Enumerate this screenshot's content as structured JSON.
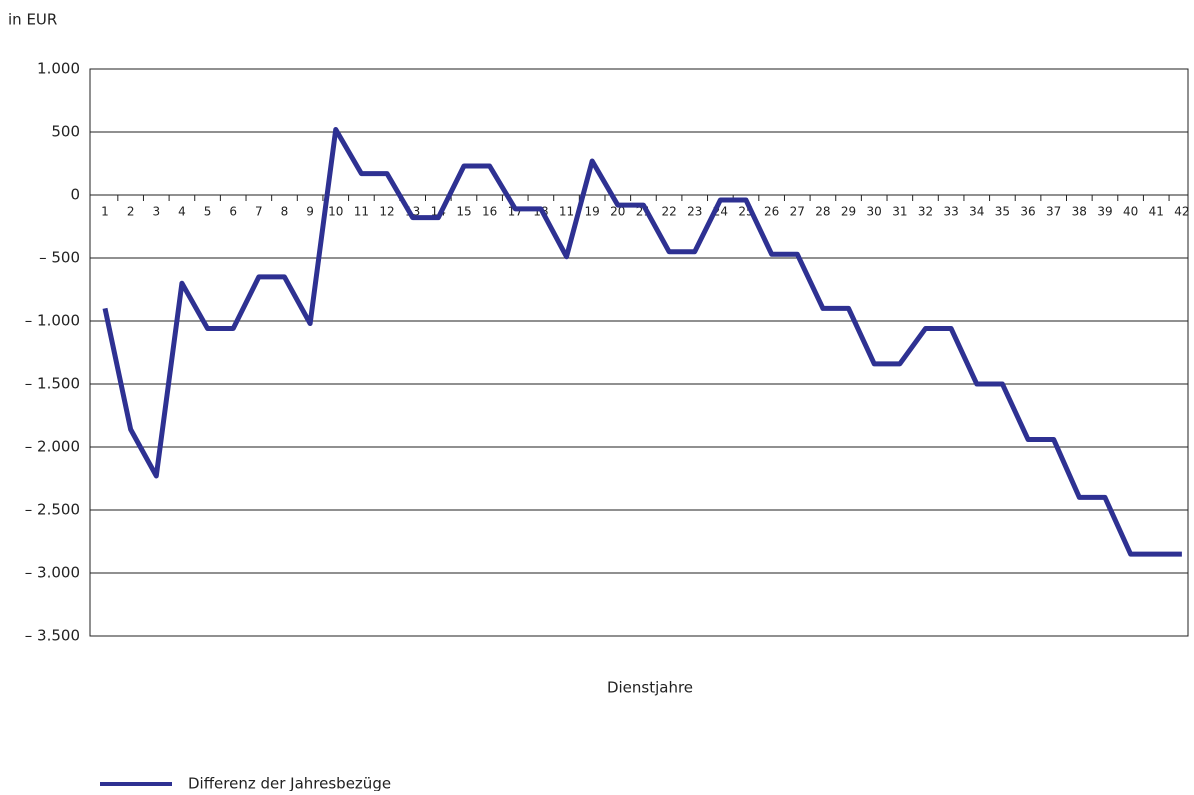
{
  "chart_data": {
    "type": "line",
    "y_unit_label": "in EUR",
    "x_label": "Dienstjahre",
    "categories": [
      "1",
      "2",
      "3",
      "4",
      "5",
      "6",
      "7",
      "8",
      "9",
      "10",
      "11",
      "12",
      "13",
      "14",
      "15",
      "16",
      "17",
      "18",
      "11",
      "19",
      "20",
      "21",
      "22",
      "23",
      "24",
      "25",
      "26",
      "27",
      "28",
      "29",
      "30",
      "31",
      "32",
      "33",
      "34",
      "35",
      "36",
      "37",
      "38",
      "39",
      "40",
      "41",
      "42"
    ],
    "series": [
      {
        "name": "Differenz der Jahresbezüge",
        "color": "#2e3192",
        "values": [
          -900,
          -1860,
          -2230,
          -700,
          -1060,
          -1060,
          -650,
          -650,
          -1020,
          520,
          170,
          170,
          -180,
          -180,
          230,
          230,
          -110,
          -110,
          -490,
          270,
          -80,
          -80,
          -450,
          -450,
          -40,
          -40,
          -470,
          -470,
          -900,
          -900,
          -1340,
          -1340,
          -1060,
          -1060,
          -1500,
          -1500,
          -1940,
          -1940,
          -2400,
          -2400,
          -2850,
          -2850,
          -2850
        ]
      }
    ],
    "ylim": [
      -3500,
      1000
    ],
    "yticks": [
      {
        "value": -3500,
        "label": "– 3.500"
      },
      {
        "value": -3000,
        "label": "– 3.000"
      },
      {
        "value": -2500,
        "label": "– 2.500"
      },
      {
        "value": -2000,
        "label": "– 2.000"
      },
      {
        "value": -1500,
        "label": "– 1.500"
      },
      {
        "value": -1000,
        "label": "– 1.000"
      },
      {
        "value": -500,
        "label": "– 500"
      },
      0,
      500,
      {
        "value": 1000,
        "label": "1.000"
      }
    ],
    "grid": true
  }
}
